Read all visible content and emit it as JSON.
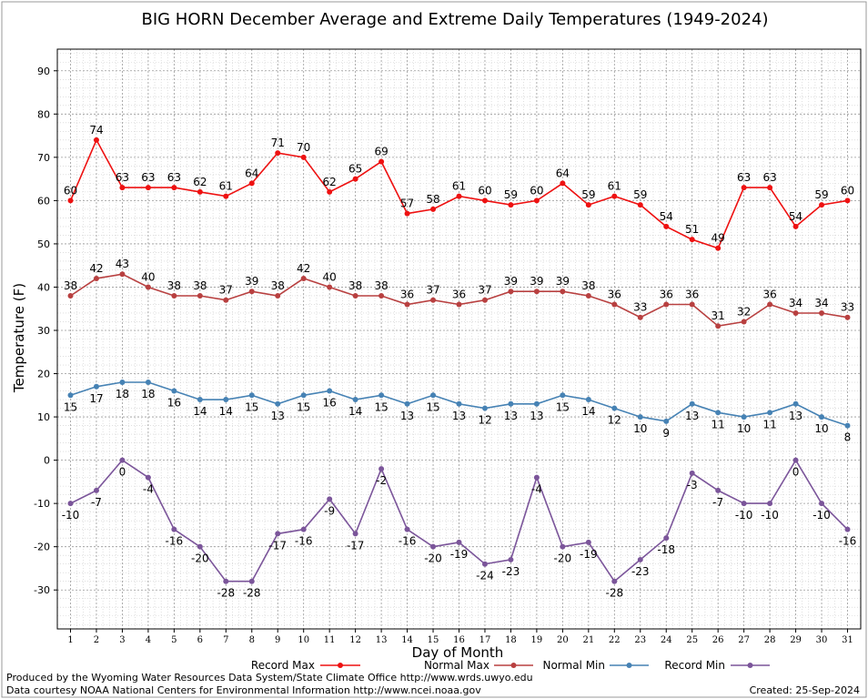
{
  "chart_data": {
    "type": "line",
    "title": "BIG HORN December Average and Extreme Daily Temperatures (1949-2024)",
    "xlabel": "Day of Month",
    "ylabel": "Temperature (F)",
    "ylim": [
      -39,
      95
    ],
    "yticks": [
      -30,
      -20,
      -10,
      0,
      10,
      20,
      30,
      40,
      50,
      60,
      70,
      80,
      90
    ],
    "x": [
      1,
      2,
      3,
      4,
      5,
      6,
      7,
      8,
      9,
      10,
      11,
      12,
      13,
      14,
      15,
      16,
      17,
      18,
      19,
      20,
      21,
      22,
      23,
      24,
      25,
      26,
      27,
      28,
      29,
      30,
      31
    ],
    "grid": true,
    "legend_position": "bottom",
    "series": [
      {
        "name": "Record Max",
        "color": "#ee1111",
        "label_pos": "above",
        "values": [
          60,
          74,
          63,
          63,
          63,
          62,
          61,
          64,
          71,
          70,
          62,
          65,
          69,
          57,
          58,
          61,
          60,
          59,
          60,
          64,
          59,
          61,
          59,
          54,
          51,
          49,
          63,
          63,
          54,
          59,
          60
        ]
      },
      {
        "name": "Normal Max",
        "color": "#b84040",
        "label_pos": "above",
        "values": [
          38,
          42,
          43,
          40,
          38,
          38,
          37,
          39,
          38,
          42,
          40,
          38,
          38,
          36,
          37,
          36,
          37,
          39,
          39,
          39,
          38,
          36,
          33,
          36,
          36,
          31,
          32,
          36,
          34,
          34,
          33
        ]
      },
      {
        "name": "Normal Min",
        "color": "#4682b4",
        "label_pos": "below",
        "values": [
          15,
          17,
          18,
          18,
          16,
          14,
          14,
          15,
          13,
          15,
          16,
          14,
          15,
          13,
          15,
          13,
          12,
          13,
          13,
          15,
          14,
          12,
          10,
          9,
          13,
          11,
          10,
          11,
          13,
          10,
          8
        ]
      },
      {
        "name": "Record Min",
        "color": "#7b559a",
        "label_pos": "below",
        "values": [
          -10,
          -7,
          0,
          -4,
          -16,
          -20,
          -28,
          -28,
          -17,
          -16,
          -9,
          -17,
          -2,
          -16,
          -20,
          -19,
          -24,
          -23,
          -4,
          -20,
          -19,
          -28,
          -23,
          -18,
          -3,
          -7,
          -10,
          -10,
          0,
          -10,
          -16
        ]
      }
    ]
  },
  "footer": {
    "produced_by": "Produced by the Wyoming Water Resources Data System/State Climate Office http://www.wrds.uwyo.edu",
    "data_courtesy": "Data courtesy NOAA National Centers for Environmental Information http://www.ncei.noaa.gov",
    "created": "Created:  25-Sep-2024"
  }
}
